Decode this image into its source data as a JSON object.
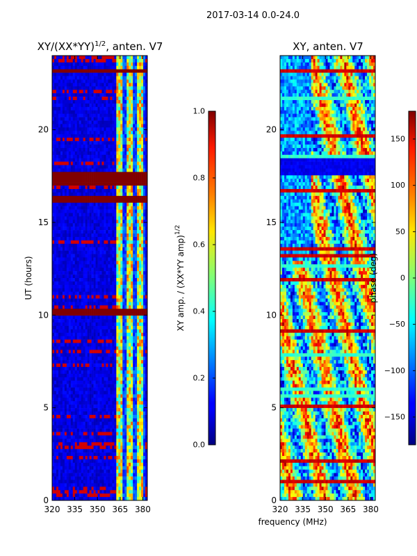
{
  "suptitle": "2017-03-14 0.0-24.0",
  "shared_xlabel": "frequency (MHz)",
  "colormap": "jet",
  "chart_data": [
    {
      "type": "heatmap",
      "title": "XY/(XX*YY)",
      "title_superscript": "1/2",
      "title_suffix": ", anten. V7",
      "xlabel": "",
      "ylabel": "UT (hours)",
      "xlim": [
        320,
        383
      ],
      "ylim": [
        0,
        24
      ],
      "xticks": [
        320,
        335,
        350,
        365,
        380
      ],
      "yticks": [
        0,
        5,
        10,
        15,
        20
      ],
      "bright_band_mhz": [
        362,
        382
      ],
      "saturated_hours": [
        [
          23.0,
          23.3
        ],
        [
          16.9,
          17.8
        ],
        [
          16.1,
          16.5
        ],
        [
          10.0,
          10.4
        ]
      ],
      "colorbar": {
        "label": "XY amp. / (XX*YY amp)",
        "label_superscript": "1/2",
        "range": [
          0.0,
          1.0
        ],
        "ticks": [
          "0.0",
          "0.2",
          "0.4",
          "0.6",
          "0.8",
          "1.0"
        ]
      }
    },
    {
      "type": "heatmap",
      "title": "XY, anten. V7",
      "xlabel": "frequency (MHz)",
      "ylabel": "",
      "xlim": [
        320,
        383
      ],
      "ylim": [
        0,
        24
      ],
      "xticks": [
        320,
        335,
        350,
        365,
        380
      ],
      "yticks": [
        0,
        5,
        10,
        15,
        20
      ],
      "dark_band_hours": [
        17.6,
        18.5
      ],
      "colorbar": {
        "label": "phase (deg)",
        "range": [
          -180,
          180
        ],
        "ticks": [
          "−150",
          "−100",
          "−50",
          "0",
          "50",
          "100",
          "150"
        ]
      }
    }
  ]
}
